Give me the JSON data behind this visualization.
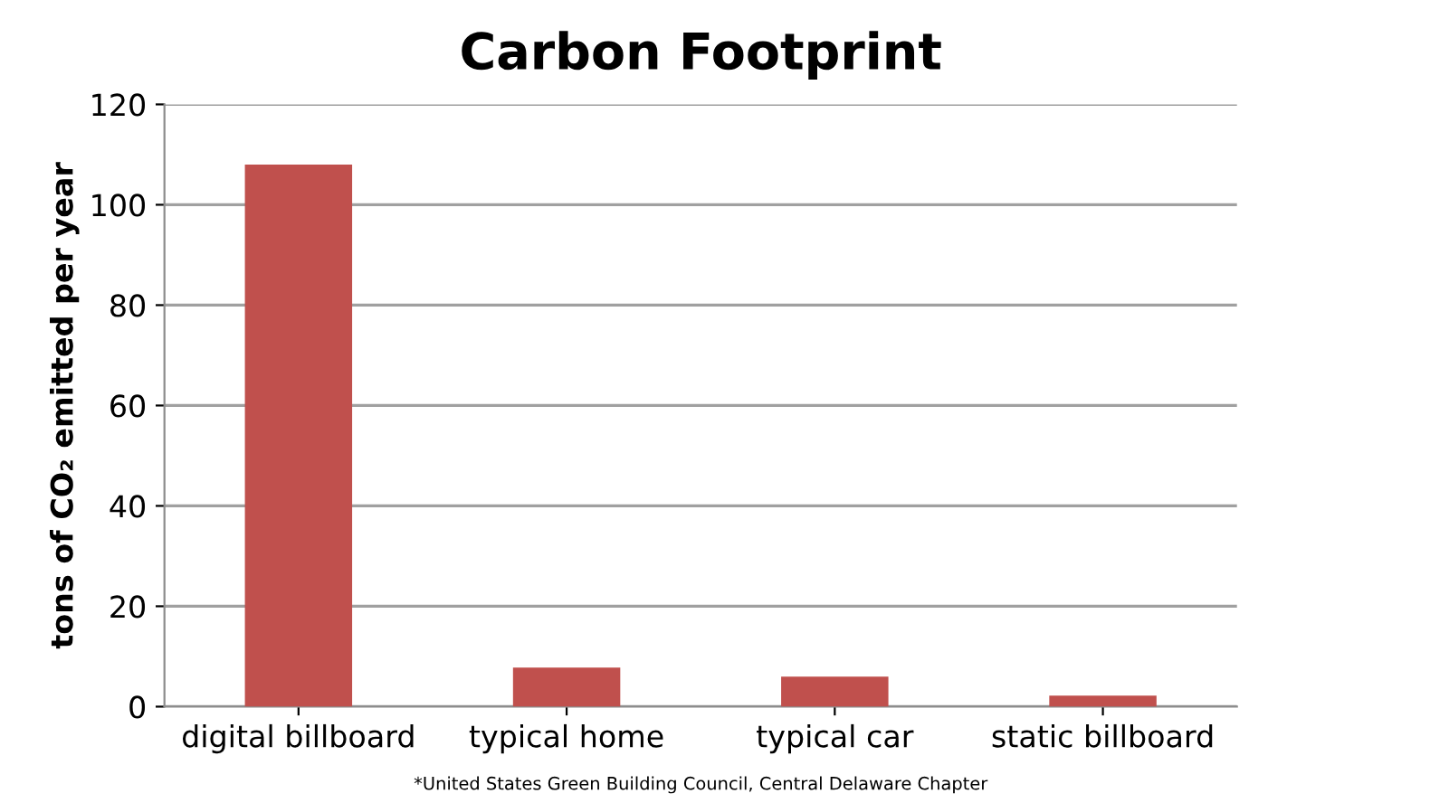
{
  "chart_data": {
    "type": "bar",
    "title": "Carbon Footprint",
    "ylabel": "tons of CO₂ emitted per year",
    "categories": [
      "digital billboard",
      "typical home",
      "typical car",
      "static billboard"
    ],
    "values": [
      108,
      7.8,
      6,
      2.2
    ],
    "color": "#c0504d",
    "ylim": [
      0,
      120
    ],
    "yticks": [
      0,
      20,
      40,
      60,
      80,
      100,
      120
    ],
    "grid": "y",
    "legend": false,
    "annotations": [
      "*United States Green Building Council, Central Delaware Chapter"
    ]
  }
}
